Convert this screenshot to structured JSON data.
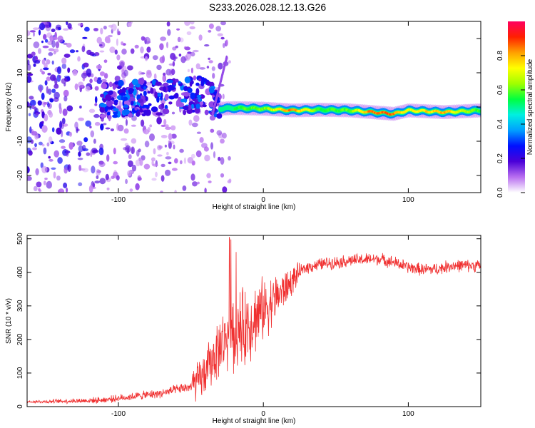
{
  "title": "S233.2026.028.12.13.G26",
  "chart_data": [
    {
      "type": "heatmap",
      "name": "spectrogram",
      "xlabel": "Height of straight line (km)",
      "ylabel": "Frequency (Hz)",
      "xlim": [
        -163,
        150
      ],
      "ylim": [
        -25,
        25
      ],
      "xticks": [
        -100,
        0,
        100
      ],
      "yticks": [
        20,
        10,
        0,
        -10,
        -20
      ],
      "colorbar": {
        "label": "Normalized spectral amplitude",
        "range": [
          0,
          1
        ],
        "ticks": [
          "0.0",
          "0.2",
          "0.4",
          "0.6",
          "0.8"
        ],
        "ramp": [
          "#ffffff",
          "#b86ef0",
          "#4a00d8",
          "#0010ff",
          "#00a0ff",
          "#00f0e0",
          "#00ff40",
          "#a0ff00",
          "#ffff00",
          "#ffa000",
          "#ff2000",
          "#ff0060"
        ]
      },
      "ridge": [
        {
          "x": -110,
          "f": 2.0,
          "a": 0.28
        },
        {
          "x": -90,
          "f": 2.5,
          "a": 0.3
        },
        {
          "x": -70,
          "f": 3.0,
          "a": 0.32
        },
        {
          "x": -50,
          "f": 3.5,
          "a": 0.34
        },
        {
          "x": -35,
          "f": 4.0,
          "a": 0.36
        },
        {
          "x": -30,
          "f": -0.5,
          "a": 0.38
        },
        {
          "x": -20,
          "f": -0.3,
          "a": 0.55
        },
        {
          "x": 0,
          "f": -0.5,
          "a": 0.6
        },
        {
          "x": 20,
          "f": -1.0,
          "a": 0.85
        },
        {
          "x": 40,
          "f": -0.8,
          "a": 0.55
        },
        {
          "x": 60,
          "f": -1.0,
          "a": 0.6
        },
        {
          "x": 75,
          "f": -1.5,
          "a": 0.85
        },
        {
          "x": 90,
          "f": -2.0,
          "a": 0.85
        },
        {
          "x": 100,
          "f": -1.0,
          "a": 0.7
        },
        {
          "x": 125,
          "f": -1.5,
          "a": 0.8
        },
        {
          "x": 150,
          "f": -1.0,
          "a": 0.55
        }
      ]
    },
    {
      "type": "line",
      "name": "snr",
      "xlabel": "Height of straight line (km)",
      "ylabel": "SNR (10 * v/v)",
      "xlim": [
        -163,
        150
      ],
      "ylim": [
        0,
        510
      ],
      "xticks": [
        -100,
        0,
        100
      ],
      "yticks": [
        0,
        100,
        200,
        300,
        400,
        500
      ],
      "color": "#f03030",
      "x": [
        -163,
        -150,
        -140,
        -130,
        -120,
        -110,
        -100,
        -90,
        -80,
        -70,
        -60,
        -50,
        -45,
        -40,
        -35,
        -30,
        -25,
        -20,
        -15,
        -10,
        -5,
        0,
        5,
        10,
        15,
        20,
        25,
        30,
        40,
        50,
        60,
        70,
        80,
        90,
        100,
        110,
        120,
        130,
        140,
        150
      ],
      "y": [
        15,
        15,
        16,
        17,
        18,
        20,
        25,
        30,
        35,
        40,
        50,
        60,
        75,
        100,
        140,
        180,
        210,
        220,
        230,
        250,
        270,
        290,
        310,
        330,
        350,
        375,
        400,
        415,
        425,
        430,
        435,
        438,
        440,
        430,
        415,
        408,
        410,
        420,
        420,
        420
      ]
    }
  ]
}
